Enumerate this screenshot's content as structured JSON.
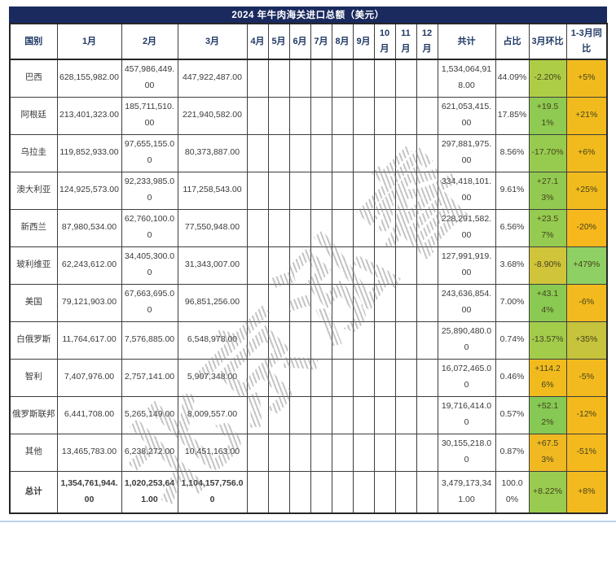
{
  "title": "2024 年牛肉海关进口总额（美元）",
  "watermark": {
    "text": "北京泓睿"
  },
  "colors": {
    "title_bar_bg": "#1a2a5e",
    "header_text": "#1f3864",
    "grid_line": "#3d3d3d",
    "green_base": "#94cb50",
    "gold_base": "#f2ba1e"
  },
  "table": {
    "headers": [
      "国别",
      "1月",
      "2月",
      "3月",
      "4月",
      "5月",
      "6月",
      "7月",
      "8月",
      "9月",
      "10月",
      "11月",
      "12月",
      "共计",
      "占比",
      "3月环比",
      "1-3月同比"
    ],
    "rows": [
      {
        "country": "巴西",
        "m1": "628,155,982.00",
        "m2": "457,986,449.00",
        "m3": "447,922,487.00",
        "total": "1,534,064,918.00",
        "share": "44.09%",
        "mom": "-2.20%",
        "mom_bg": "#aecd46",
        "yoy": "+5%",
        "yoy_bg": "#f2bb1d",
        "bold": false
      },
      {
        "country": "阿根廷",
        "m1": "213,401,323.00",
        "m2": "185,711,510.00",
        "m3": "221,940,582.00",
        "total": "621,053,415.00",
        "share": "17.85%",
        "mom": "+19.51%",
        "mom_bg": "#8fca52",
        "yoy": "+21%",
        "yoy_bg": "#f2bb1d",
        "bold": false
      },
      {
        "country": "乌拉圭",
        "m1": "119,852,933.00",
        "m2": "97,655,155.00",
        "m3": "80,373,887.00",
        "total": "297,881,975.00",
        "share": "8.56%",
        "mom": "-17.70%",
        "mom_bg": "#97cb4f",
        "yoy": "+6%",
        "yoy_bg": "#f2bb1d",
        "bold": false
      },
      {
        "country": "澳大利亚",
        "m1": "124,925,573.00",
        "m2": "92,233,985.00",
        "m3": "117,258,543.00",
        "total": "334,418,101.00",
        "share": "9.61%",
        "mom": "+27.13%",
        "mom_bg": "#92ca51",
        "yoy": "+25%",
        "yoy_bg": "#f2bb1d",
        "bold": false
      },
      {
        "country": "新西兰",
        "m1": "87,980,534.00",
        "m2": "62,760,100.00",
        "m3": "77,550,948.00",
        "total": "228,291,582.00",
        "share": "6.56%",
        "mom": "+23.57%",
        "mom_bg": "#95cb50",
        "yoy": "-20%",
        "yoy_bg": "#f6b81c",
        "bold": false
      },
      {
        "country": "玻利维亚",
        "m1": "62,243,612.00",
        "m2": "34,405,300.00",
        "m3": "31,343,007.00",
        "total": "127,991,919.00",
        "share": "3.68%",
        "mom": "-8.90%",
        "mom_bg": "#cfc43a",
        "yoy": "+479%",
        "yoy_bg": "#8ed063",
        "bold": false
      },
      {
        "country": "美国",
        "m1": "79,121,903.00",
        "m2": "67,663,695.00",
        "m3": "96,851,256.00",
        "total": "243,636,854.00",
        "share": "7.00%",
        "mom": "+43.14%",
        "mom_bg": "#8aca53",
        "yoy": "-6%",
        "yoy_bg": "#f2ba1e",
        "bold": false
      },
      {
        "country": "白俄罗斯",
        "m1": "11,764,617.00",
        "m2": "7,576,885.00",
        "m3": "6,548,978.00",
        "total": "25,890,480.00",
        "share": "0.74%",
        "mom": "-13.57%",
        "mom_bg": "#a3cc4b",
        "yoy": "+35%",
        "yoy_bg": "#c6c33d",
        "bold": false
      },
      {
        "country": "智利",
        "m1": "7,407,976.00",
        "m2": "2,757,141.00",
        "m3": "5,907,348.00",
        "total": "16,072,465.00",
        "share": "0.46%",
        "mom": "+114.26%",
        "mom_bg": "#f1bb1e",
        "yoy": "-5%",
        "yoy_bg": "#f2ba1e",
        "bold": false
      },
      {
        "country": "俄罗斯联邦",
        "m1": "6,441,708.00",
        "m2": "5,265,149.00",
        "m3": "8,009,557.00",
        "total": "19,716,414.00",
        "share": "0.57%",
        "mom": "+52.12%",
        "mom_bg": "#86c954",
        "yoy": "-12%",
        "yoy_bg": "#f4ba1d",
        "bold": false
      },
      {
        "country": "其他",
        "m1": "13,465,783.00",
        "m2": "6,238,272.00",
        "m3": "10,451,163.00",
        "total": "30,155,218.00",
        "share": "0.87%",
        "mom": "+67.53%",
        "mom_bg": "#f0b922",
        "yoy": "-51%",
        "yoy_bg": "#f4b91d",
        "bold": false
      },
      {
        "country": "总计",
        "m1": "1,354,761,944.00",
        "m2": "1,020,253,641.00",
        "m3": "1,104,157,756.00",
        "total": "3,479,173,341.00",
        "share": "100.00%",
        "mom": "+8.22%",
        "mom_bg": "#98cb4f",
        "yoy": "+8%",
        "yoy_bg": "#f2ba1e",
        "bold": true
      }
    ]
  }
}
